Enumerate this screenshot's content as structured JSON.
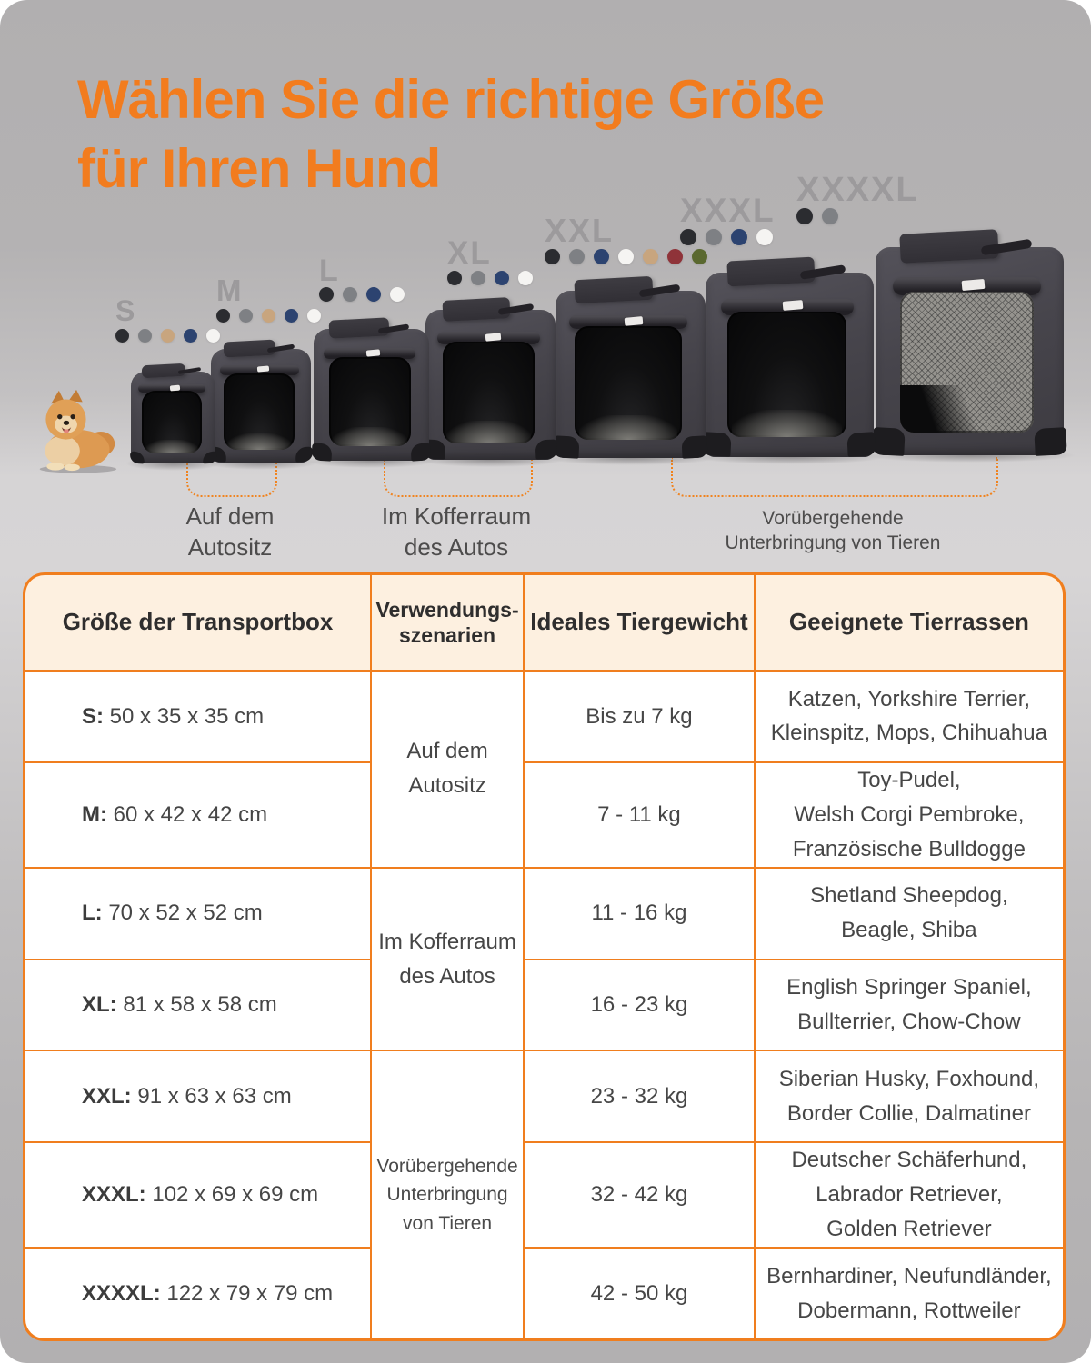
{
  "title": {
    "line1": "Wählen Sie die richtige Größe",
    "line2": "für Ihren Hund"
  },
  "colors": {
    "accent_orange": "#f27c1e",
    "table_border_orange": "#f07e1e",
    "header_bg_cream": "#fdf0e0",
    "background_gray": "#b2b0b1",
    "floor_gray": "#d7d5d6",
    "size_label_gray": "#9c9a9c",
    "carrier_charcoal": "#47454c"
  },
  "swatch_palette": {
    "black": "#2b2c30",
    "gray": "#7e8084",
    "tan": "#c8a57e",
    "navy": "#2c4370",
    "white": "#f5f4f2",
    "red": "#8f3339",
    "green": "#5a682f"
  },
  "products": [
    {
      "label": "S",
      "swatches": [
        "black",
        "gray",
        "tan",
        "navy",
        "white"
      ]
    },
    {
      "label": "M",
      "swatches": [
        "black",
        "gray",
        "tan",
        "navy",
        "white"
      ]
    },
    {
      "label": "L",
      "swatches": [
        "black",
        "gray",
        "navy",
        "white"
      ]
    },
    {
      "label": "XL",
      "swatches": [
        "black",
        "gray",
        "navy",
        "white"
      ]
    },
    {
      "label": "XXL",
      "swatches": [
        "black",
        "gray",
        "navy",
        "white",
        "tan",
        "red",
        "green"
      ]
    },
    {
      "label": "XXXL",
      "swatches": [
        "black",
        "gray",
        "navy",
        "white"
      ]
    },
    {
      "label": "XXXXL",
      "swatches": [
        "black",
        "gray"
      ]
    }
  ],
  "scene": {
    "annotations": [
      {
        "lines": [
          "Auf dem",
          "Autositz"
        ]
      },
      {
        "lines": [
          "Im Kofferraum",
          "des Autos"
        ]
      },
      {
        "lines": [
          "Vorübergehende",
          "Unterbringung von Tieren"
        ]
      }
    ]
  },
  "table": {
    "headers": [
      {
        "lines": [
          "Größe der Transportbox"
        ]
      },
      {
        "lines": [
          "Verwendungs-",
          "szenarien"
        ]
      },
      {
        "lines": [
          "Ideales Tiergewicht"
        ]
      },
      {
        "lines": [
          "Geeignete Tierrassen"
        ]
      }
    ],
    "scenarios": [
      {
        "lines": [
          "Auf dem",
          "Autositz"
        ]
      },
      {
        "lines": [
          "Im Kofferraum",
          "des Autos"
        ]
      },
      {
        "lines": [
          "Vorübergehende",
          "Unterbringung",
          "von Tieren"
        ]
      }
    ],
    "rows": [
      {
        "size_bold": "S:",
        "size_rest": " 50 x 35 x 35 cm",
        "weight": "Bis zu 7 kg",
        "breeds_lines": [
          "Katzen, Yorkshire Terrier,",
          "Kleinspitz, Mops, Chihuahua"
        ]
      },
      {
        "size_bold": "M:",
        "size_rest": " 60 x 42 x 42 cm",
        "weight": "7 - 11 kg",
        "breeds_lines": [
          "Toy-Pudel,",
          "Welsh Corgi Pembroke,",
          "Französische Bulldogge"
        ]
      },
      {
        "size_bold": "L:",
        "size_rest": " 70 x 52 x 52 cm",
        "weight": "11 - 16 kg",
        "breeds_lines": [
          "Shetland Sheepdog,",
          "Beagle, Shiba"
        ]
      },
      {
        "size_bold": "XL:",
        "size_rest": " 81 x 58 x 58 cm",
        "weight": "16 - 23 kg",
        "breeds_lines": [
          "English Springer Spaniel,",
          "Bullterrier, Chow-Chow"
        ]
      },
      {
        "size_bold": "XXL:",
        "size_rest": " 91 x 63 x 63 cm",
        "weight": "23 - 32 kg",
        "breeds_lines": [
          "Siberian Husky, Foxhound,",
          "Border Collie, Dalmatiner"
        ]
      },
      {
        "size_bold": "XXXL:",
        "size_rest": " 102 x 69 x 69 cm",
        "weight": "32 - 42 kg",
        "breeds_lines": [
          "Deutscher Schäferhund,",
          "Labrador Retriever,",
          "Golden Retriever"
        ]
      },
      {
        "size_bold": "XXXXL:",
        "size_rest": " 122 x 79 x 79 cm",
        "weight": "42 - 50 kg",
        "breeds_lines": [
          "Bernhardiner, Neufundländer,",
          "Dobermann, Rottweiler"
        ]
      }
    ]
  }
}
